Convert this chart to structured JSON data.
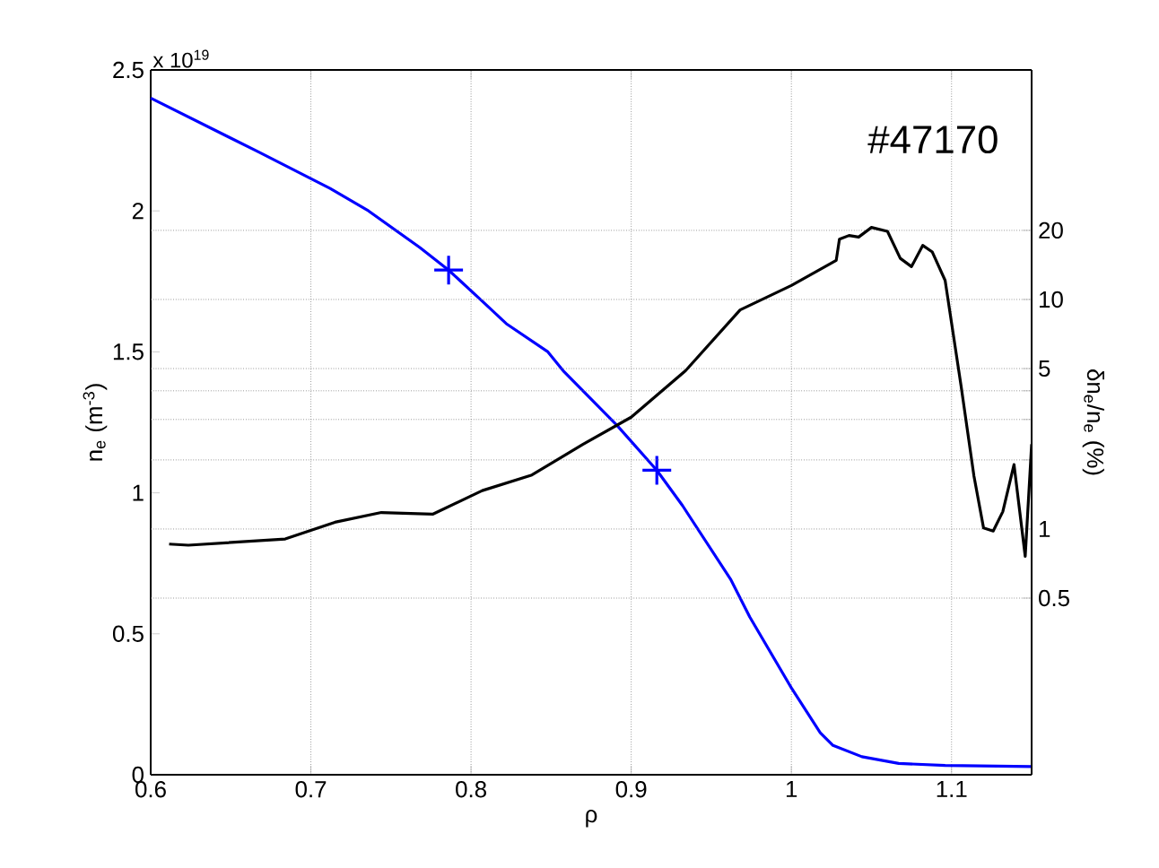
{
  "chart_data": {
    "type": "line",
    "xlabel": "ρ",
    "ylabel": "n$_{e}$ (m$^{-3}$)",
    "y2label": "δn$_{e}$/n$_{e}$ (%)",
    "annotations": [
      "#47170",
      "x 10$^{19}$"
    ],
    "xlim": [
      0.6,
      1.15
    ],
    "xticks": [
      0.6,
      0.7,
      0.8,
      0.9,
      1,
      1.1
    ],
    "ylim": [
      0,
      2.5
    ],
    "yticks": [
      0,
      0.5,
      1,
      1.5,
      2,
      2.5
    ],
    "y2lim": [
      0.085,
      100
    ],
    "y2ticks": [
      0.5,
      1,
      {
        "value": 2,
        "label": null
      },
      {
        "value": 3,
        "label": null
      },
      {
        "value": 4,
        "label": null
      },
      5,
      10,
      20
    ],
    "log": "y2",
    "grid": true,
    "marker": "none",
    "line_style": "solid",
    "series": [
      {
        "color": "#0000ff",
        "x": [
          0.6,
          0.667,
          0.712,
          0.736,
          0.768,
          0.786,
          0.807,
          0.822,
          0.848,
          0.858,
          0.891,
          0.916,
          0.932,
          0.962,
          0.974,
          1.0,
          1.018,
          1.026,
          1.044,
          1.067,
          1.096,
          1.15
        ],
        "values": [
          2.4,
          2.21,
          2.08,
          2.0,
          1.87,
          1.79,
          1.68,
          1.6,
          1.5,
          1.43,
          1.24,
          1.08,
          0.955,
          0.694,
          0.56,
          0.308,
          0.149,
          0.104,
          0.064,
          0.04,
          0.033,
          0.029
        ]
      },
      {
        "color": "#000000",
        "axis": "y2",
        "x": [
          0.6115,
          0.6235,
          0.684,
          0.715,
          0.744,
          0.776,
          0.807,
          0.838,
          0.87,
          0.9,
          0.934,
          0.968,
          1.0,
          1.028,
          1.03,
          1.036,
          1.042,
          1.05,
          1.06,
          1.068,
          1.075,
          1.082,
          1.088,
          1.096,
          1.106,
          1.114,
          1.12,
          1.126,
          1.132,
          1.139,
          1.146,
          1.15
        ],
        "values": [
          0.86,
          0.85,
          0.905,
          1.07,
          1.18,
          1.16,
          1.47,
          1.72,
          2.34,
          3.07,
          4.9,
          9.0,
          11.5,
          14.8,
          18.3,
          19.0,
          18.7,
          20.6,
          19.8,
          15.1,
          13.9,
          17.2,
          16.1,
          12.1,
          4.18,
          1.7,
          1.01,
          0.98,
          1.19,
          1.91,
          0.76,
          2.34
        ]
      },
      {
        "type": "scatter",
        "marker": "cross",
        "color": "#0000ff",
        "x": [
          0.786,
          0.916
        ],
        "values": [
          1.79,
          1.08
        ]
      }
    ]
  }
}
